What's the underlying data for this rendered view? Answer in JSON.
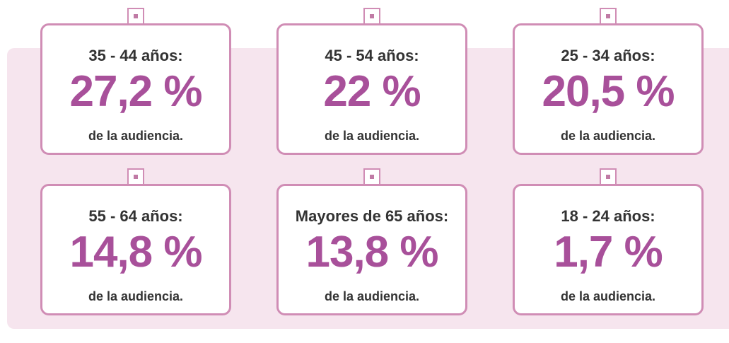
{
  "cards": [
    {
      "label": "35 - 44 años:",
      "value": "27,2 %",
      "note": "de la audiencia."
    },
    {
      "label": "45 - 54 años:",
      "value": "22 %",
      "note": "de la audiencia."
    },
    {
      "label": "25 - 34 años:",
      "value": "20,5 %",
      "note": "de la audiencia."
    },
    {
      "label": "55 - 64 años:",
      "value": "14,8 %",
      "note": "de la audiencia."
    },
    {
      "label": "Mayores de 65 años:",
      "value": "13,8 %",
      "note": "de la audiencia."
    },
    {
      "label": "18 - 24 años:",
      "value": "1,7 %",
      "note": "de la audiencia."
    }
  ]
}
